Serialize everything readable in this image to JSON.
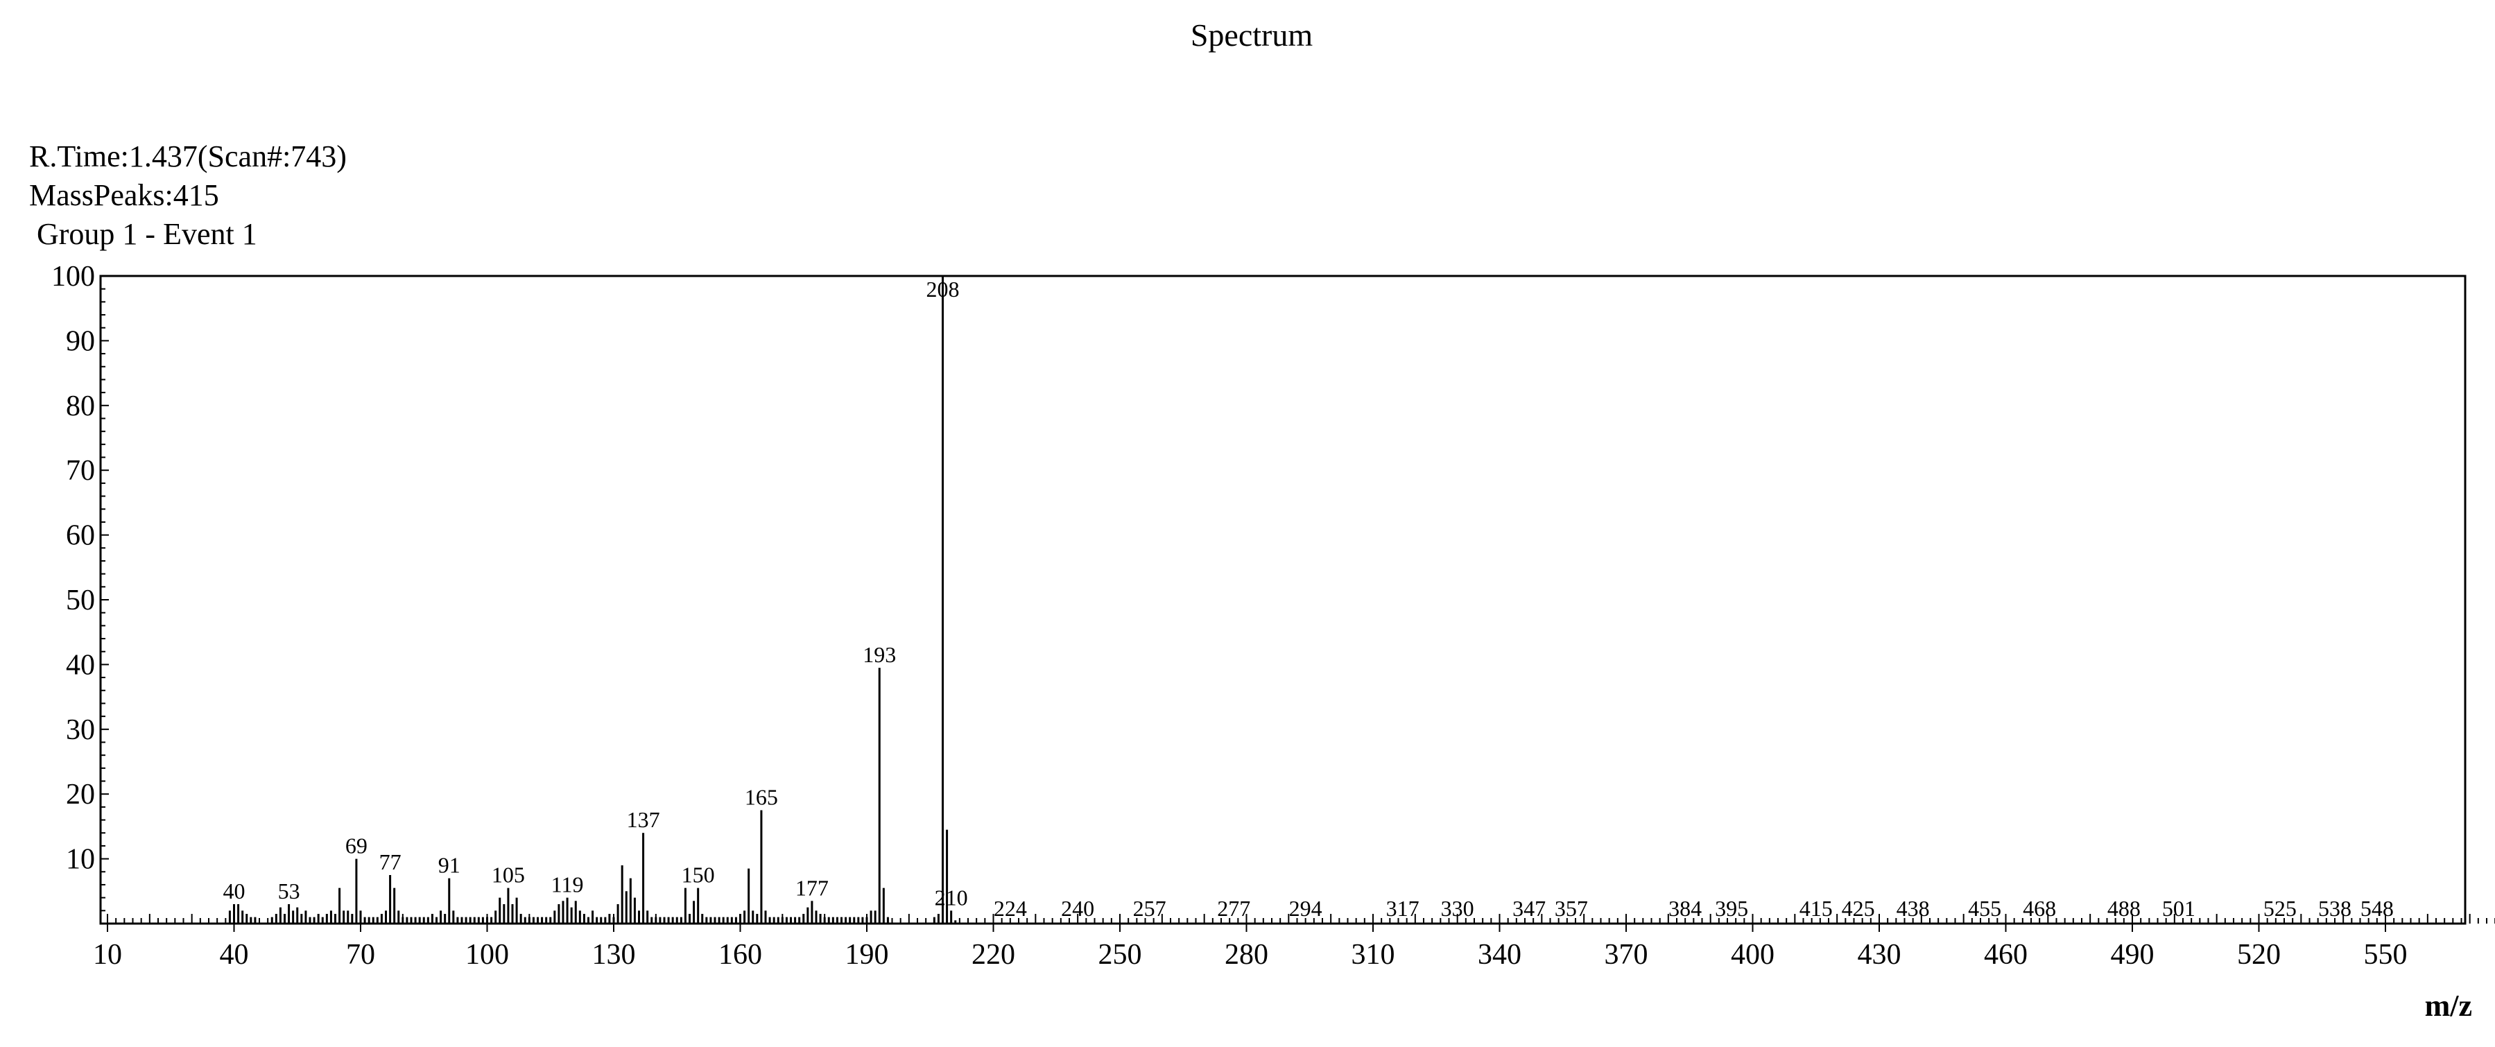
{
  "chart_data": {
    "type": "bar",
    "title": "Spectrum",
    "info_lines": [
      "R.Time:1.437(Scan#:743)",
      "MassPeaks:415",
      " Group 1 - Event 1"
    ],
    "xlabel": "m/z",
    "ylabel": "",
    "xlim": [
      10,
      580
    ],
    "ylim": [
      0,
      100
    ],
    "x_ticks": [
      10,
      40,
      70,
      100,
      130,
      160,
      190,
      220,
      250,
      280,
      310,
      340,
      370,
      400,
      430,
      460,
      490,
      520,
      550
    ],
    "y_ticks": [
      10,
      20,
      30,
      40,
      50,
      60,
      70,
      80,
      90,
      100
    ],
    "grid": false,
    "peak_labels": [
      40,
      53,
      69,
      77,
      91,
      105,
      119,
      137,
      150,
      165,
      177,
      193,
      208,
      210,
      224,
      240,
      257,
      277,
      294,
      317,
      330,
      347,
      357,
      384,
      395,
      415,
      425,
      438,
      455,
      468,
      488,
      501,
      525,
      538,
      548
    ],
    "peaks": [
      {
        "x": 39,
        "y": 2
      },
      {
        "x": 40,
        "y": 3
      },
      {
        "x": 41,
        "y": 3
      },
      {
        "x": 42,
        "y": 2
      },
      {
        "x": 43,
        "y": 1.5
      },
      {
        "x": 44,
        "y": 1
      },
      {
        "x": 45,
        "y": 1
      },
      {
        "x": 49,
        "y": 1
      },
      {
        "x": 50,
        "y": 1.5
      },
      {
        "x": 51,
        "y": 2.5
      },
      {
        "x": 52,
        "y": 1.5
      },
      {
        "x": 53,
        "y": 3
      },
      {
        "x": 54,
        "y": 2
      },
      {
        "x": 55,
        "y": 2.5
      },
      {
        "x": 56,
        "y": 1.5
      },
      {
        "x": 57,
        "y": 2
      },
      {
        "x": 58,
        "y": 1
      },
      {
        "x": 59,
        "y": 1
      },
      {
        "x": 60,
        "y": 1.5
      },
      {
        "x": 61,
        "y": 1
      },
      {
        "x": 62,
        "y": 1.5
      },
      {
        "x": 63,
        "y": 2
      },
      {
        "x": 64,
        "y": 1.5
      },
      {
        "x": 65,
        "y": 5.5
      },
      {
        "x": 66,
        "y": 2
      },
      {
        "x": 67,
        "y": 2
      },
      {
        "x": 68,
        "y": 1.5
      },
      {
        "x": 69,
        "y": 10
      },
      {
        "x": 70,
        "y": 2
      },
      {
        "x": 71,
        "y": 1
      },
      {
        "x": 72,
        "y": 1
      },
      {
        "x": 73,
        "y": 1
      },
      {
        "x": 74,
        "y": 1
      },
      {
        "x": 75,
        "y": 1.5
      },
      {
        "x": 76,
        "y": 2
      },
      {
        "x": 77,
        "y": 7.5
      },
      {
        "x": 78,
        "y": 5.5
      },
      {
        "x": 79,
        "y": 2
      },
      {
        "x": 80,
        "y": 1
      },
      {
        "x": 81,
        "y": 1
      },
      {
        "x": 82,
        "y": 1
      },
      {
        "x": 83,
        "y": 1
      },
      {
        "x": 84,
        "y": 1
      },
      {
        "x": 85,
        "y": 1
      },
      {
        "x": 86,
        "y": 1
      },
      {
        "x": 87,
        "y": 1.5
      },
      {
        "x": 88,
        "y": 1
      },
      {
        "x": 89,
        "y": 2
      },
      {
        "x": 90,
        "y": 1.5
      },
      {
        "x": 91,
        "y": 7
      },
      {
        "x": 92,
        "y": 2
      },
      {
        "x": 93,
        "y": 1
      },
      {
        "x": 94,
        "y": 1
      },
      {
        "x": 95,
        "y": 1
      },
      {
        "x": 96,
        "y": 1
      },
      {
        "x": 97,
        "y": 1
      },
      {
        "x": 98,
        "y": 1
      },
      {
        "x": 99,
        "y": 1
      },
      {
        "x": 100,
        "y": 1
      },
      {
        "x": 101,
        "y": 1
      },
      {
        "x": 102,
        "y": 2
      },
      {
        "x": 103,
        "y": 4
      },
      {
        "x": 104,
        "y": 3
      },
      {
        "x": 105,
        "y": 5.5
      },
      {
        "x": 106,
        "y": 3
      },
      {
        "x": 107,
        "y": 4
      },
      {
        "x": 108,
        "y": 1.5
      },
      {
        "x": 109,
        "y": 1
      },
      {
        "x": 110,
        "y": 1
      },
      {
        "x": 111,
        "y": 1
      },
      {
        "x": 112,
        "y": 1
      },
      {
        "x": 113,
        "y": 1
      },
      {
        "x": 114,
        "y": 1
      },
      {
        "x": 115,
        "y": 1
      },
      {
        "x": 116,
        "y": 2
      },
      {
        "x": 117,
        "y": 3
      },
      {
        "x": 118,
        "y": 3.5
      },
      {
        "x": 119,
        "y": 4
      },
      {
        "x": 120,
        "y": 2.5
      },
      {
        "x": 121,
        "y": 3.5
      },
      {
        "x": 122,
        "y": 2
      },
      {
        "x": 123,
        "y": 1.5
      },
      {
        "x": 124,
        "y": 1
      },
      {
        "x": 125,
        "y": 2
      },
      {
        "x": 126,
        "y": 1
      },
      {
        "x": 127,
        "y": 1
      },
      {
        "x": 128,
        "y": 1
      },
      {
        "x": 129,
        "y": 1.5
      },
      {
        "x": 130,
        "y": 1
      },
      {
        "x": 131,
        "y": 3
      },
      {
        "x": 132,
        "y": 9
      },
      {
        "x": 133,
        "y": 5
      },
      {
        "x": 134,
        "y": 7
      },
      {
        "x": 135,
        "y": 4
      },
      {
        "x": 136,
        "y": 2
      },
      {
        "x": 137,
        "y": 14
      },
      {
        "x": 138,
        "y": 2
      },
      {
        "x": 139,
        "y": 1
      },
      {
        "x": 140,
        "y": 1
      },
      {
        "x": 141,
        "y": 1
      },
      {
        "x": 142,
        "y": 1
      },
      {
        "x": 143,
        "y": 1
      },
      {
        "x": 144,
        "y": 1
      },
      {
        "x": 145,
        "y": 1
      },
      {
        "x": 146,
        "y": 1
      },
      {
        "x": 147,
        "y": 5.5
      },
      {
        "x": 148,
        "y": 1.5
      },
      {
        "x": 149,
        "y": 3.5
      },
      {
        "x": 150,
        "y": 5.5
      },
      {
        "x": 151,
        "y": 1.5
      },
      {
        "x": 152,
        "y": 1
      },
      {
        "x": 153,
        "y": 1
      },
      {
        "x": 154,
        "y": 1
      },
      {
        "x": 155,
        "y": 1
      },
      {
        "x": 156,
        "y": 1
      },
      {
        "x": 157,
        "y": 1
      },
      {
        "x": 158,
        "y": 1
      },
      {
        "x": 159,
        "y": 1
      },
      {
        "x": 160,
        "y": 1.5
      },
      {
        "x": 161,
        "y": 2
      },
      {
        "x": 162,
        "y": 8.5
      },
      {
        "x": 163,
        "y": 2
      },
      {
        "x": 164,
        "y": 1.5
      },
      {
        "x": 165,
        "y": 17.5
      },
      {
        "x": 166,
        "y": 2
      },
      {
        "x": 167,
        "y": 1
      },
      {
        "x": 168,
        "y": 1
      },
      {
        "x": 169,
        "y": 1
      },
      {
        "x": 170,
        "y": 1
      },
      {
        "x": 171,
        "y": 1
      },
      {
        "x": 172,
        "y": 1
      },
      {
        "x": 173,
        "y": 1
      },
      {
        "x": 174,
        "y": 1
      },
      {
        "x": 175,
        "y": 1.5
      },
      {
        "x": 176,
        "y": 2.5
      },
      {
        "x": 177,
        "y": 3.5
      },
      {
        "x": 178,
        "y": 2
      },
      {
        "x": 179,
        "y": 1.5
      },
      {
        "x": 180,
        "y": 1
      },
      {
        "x": 181,
        "y": 1
      },
      {
        "x": 182,
        "y": 1
      },
      {
        "x": 183,
        "y": 1
      },
      {
        "x": 184,
        "y": 1
      },
      {
        "x": 185,
        "y": 1
      },
      {
        "x": 186,
        "y": 1
      },
      {
        "x": 187,
        "y": 1
      },
      {
        "x": 188,
        "y": 1
      },
      {
        "x": 189,
        "y": 1
      },
      {
        "x": 190,
        "y": 1
      },
      {
        "x": 191,
        "y": 2
      },
      {
        "x": 192,
        "y": 2
      },
      {
        "x": 193,
        "y": 39.5
      },
      {
        "x": 194,
        "y": 5.5
      },
      {
        "x": 195,
        "y": 1
      },
      {
        "x": 206,
        "y": 1
      },
      {
        "x": 207,
        "y": 1.5
      },
      {
        "x": 208,
        "y": 100
      },
      {
        "x": 209,
        "y": 14.5
      },
      {
        "x": 210,
        "y": 2
      },
      {
        "x": 211,
        "y": 0.5
      }
    ]
  }
}
